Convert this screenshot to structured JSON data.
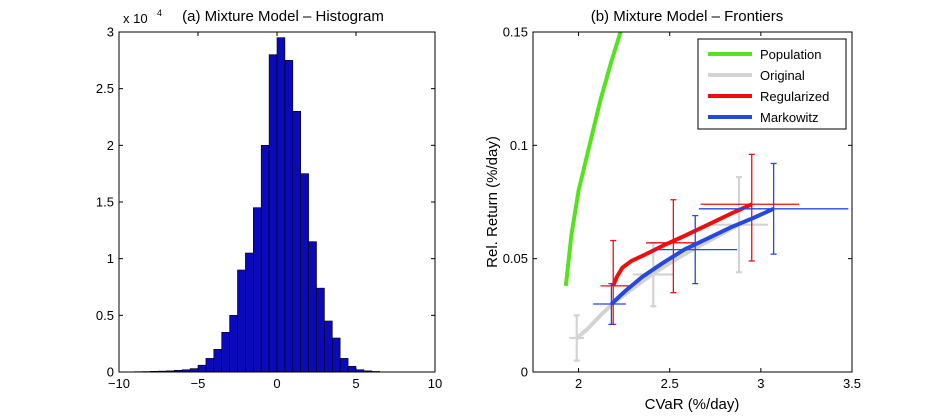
{
  "chart_data": [
    {
      "type": "bar",
      "title": "(a) Mixture Model – Histogram",
      "xlabel": "",
      "ylabel": "",
      "y_multiplier": "x 10",
      "y_multiplier_exp": "4",
      "xlim": [
        -10,
        10
      ],
      "ylim": [
        0,
        3
      ],
      "x_ticks": [
        -10,
        -5,
        0,
        5,
        10
      ],
      "y_ticks": [
        0,
        0.5,
        1,
        1.5,
        2,
        2.5,
        3
      ],
      "x_tick_labels": [
        "−10",
        "−5",
        "0",
        "5",
        "10"
      ],
      "y_tick_labels": [
        "0",
        "0.5",
        "1",
        "1.5",
        "2",
        "2.5",
        "3"
      ],
      "bar_color": "#0a0aba",
      "bin_width": 0.5,
      "bin_centers": [
        -8.75,
        -8.25,
        -7.75,
        -7.25,
        -6.75,
        -6.25,
        -5.75,
        -5.25,
        -4.75,
        -4.25,
        -3.75,
        -3.25,
        -2.75,
        -2.25,
        -1.75,
        -1.25,
        -0.75,
        -0.25,
        0.25,
        0.75,
        1.25,
        1.75,
        2.25,
        2.75,
        3.25,
        3.75,
        4.25,
        4.75,
        5.25,
        5.75,
        6.25
      ],
      "values": [
        0.003,
        0.004,
        0.006,
        0.008,
        0.01,
        0.015,
        0.02,
        0.03,
        0.06,
        0.12,
        0.2,
        0.35,
        0.5,
        0.9,
        1.05,
        1.45,
        2.0,
        2.8,
        2.95,
        2.75,
        2.3,
        1.75,
        1.15,
        0.74,
        0.45,
        0.3,
        0.12,
        0.05,
        0.02,
        0.01,
        0.005
      ]
    },
    {
      "type": "line",
      "title": "(b) Mixture Model – Frontiers",
      "xlabel": "CVaR (%/day)",
      "ylabel": "Rel. Return (%/day)",
      "xlim": [
        1.75,
        3.5
      ],
      "ylim": [
        0,
        0.15
      ],
      "x_ticks": [
        2,
        2.5,
        3,
        3.5
      ],
      "y_ticks": [
        0,
        0.05,
        0.1,
        0.15
      ],
      "x_tick_labels": [
        "2",
        "2.5",
        "3",
        "3.5"
      ],
      "y_tick_labels": [
        "0",
        "0.05",
        "0.1",
        "0.15"
      ],
      "legend_position": "top-right",
      "series": [
        {
          "name": "Population",
          "color": "#55e21f",
          "x": [
            1.93,
            1.96,
            2.0,
            2.06,
            2.12,
            2.18,
            2.23
          ],
          "y": [
            0.038,
            0.06,
            0.08,
            0.1,
            0.12,
            0.137,
            0.15
          ]
        },
        {
          "name": "Original",
          "color": "#d3d3d3",
          "x": [
            1.99,
            2.05,
            2.12,
            2.2,
            2.3,
            2.42,
            2.56,
            2.72,
            2.88
          ],
          "y": [
            0.015,
            0.019,
            0.025,
            0.031,
            0.037,
            0.044,
            0.051,
            0.058,
            0.065
          ],
          "errorbars": [
            {
              "x": 1.99,
              "y": 0.015,
              "xerr": [
                0.04,
                0.04
              ],
              "yerr": [
                0.01,
                0.01
              ]
            },
            {
              "x": 2.41,
              "y": 0.043,
              "xerr": [
                0.11,
                0.11
              ],
              "yerr": [
                0.014,
                0.014
              ]
            },
            {
              "x": 2.88,
              "y": 0.065,
              "xerr": [
                0.16,
                0.16
              ],
              "yerr": [
                0.021,
                0.021
              ]
            }
          ]
        },
        {
          "name": "Regularized",
          "color": "#ee0e0e",
          "x": [
            2.19,
            2.21,
            2.24,
            2.29,
            2.37,
            2.47,
            2.58,
            2.71,
            2.84,
            2.95
          ],
          "y": [
            0.038,
            0.042,
            0.046,
            0.049,
            0.052,
            0.056,
            0.06,
            0.065,
            0.07,
            0.074
          ],
          "errorbars": [
            {
              "x": 2.19,
              "y": 0.038,
              "xerr": [
                0.07,
                0.09
              ],
              "yerr": [
                0.017,
                0.02
              ]
            },
            {
              "x": 2.52,
              "y": 0.057,
              "xerr": [
                0.15,
                0.15
              ],
              "yerr": [
                0.022,
                0.019
              ]
            },
            {
              "x": 2.95,
              "y": 0.074,
              "xerr": [
                0.28,
                0.26
              ],
              "yerr": [
                0.025,
                0.022
              ]
            }
          ]
        },
        {
          "name": "Markowitz",
          "color": "#2648e0",
          "x": [
            2.18,
            2.26,
            2.35,
            2.46,
            2.58,
            2.71,
            2.84,
            2.96,
            3.07
          ],
          "y": [
            0.03,
            0.036,
            0.042,
            0.048,
            0.054,
            0.059,
            0.064,
            0.068,
            0.072
          ],
          "errorbars": [
            {
              "x": 2.18,
              "y": 0.03,
              "xerr": [
                0.1,
                0.08
              ],
              "yerr": [
                0.009,
                0.009
              ]
            },
            {
              "x": 2.64,
              "y": 0.054,
              "xerr": [
                0.24,
                0.23
              ],
              "yerr": [
                0.015,
                0.015
              ]
            },
            {
              "x": 3.07,
              "y": 0.072,
              "xerr": [
                0.41,
                0.41
              ],
              "yerr": [
                0.02,
                0.02
              ]
            }
          ]
        }
      ]
    }
  ]
}
